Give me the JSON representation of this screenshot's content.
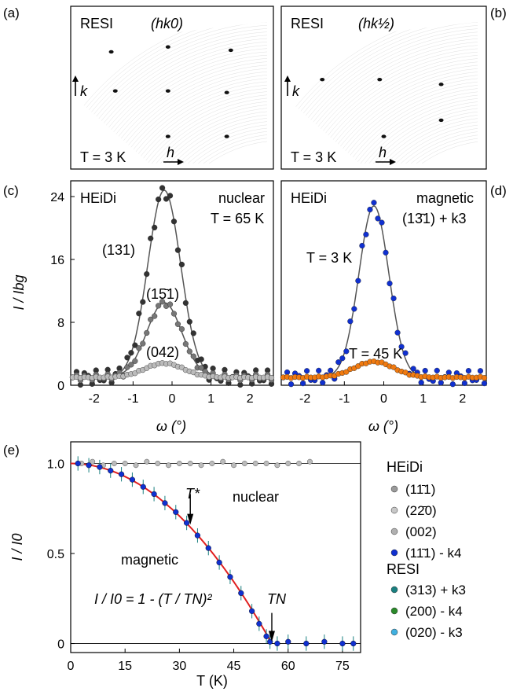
{
  "panels": {
    "a": {
      "label": "(a)",
      "instrument": "RESI",
      "plane": "(hk0)",
      "temp": "T = 3 K",
      "kaxis": "k",
      "haxis": "h"
    },
    "b": {
      "label": "(b)",
      "instrument": "RESI",
      "plane": "(hk½)",
      "temp": "T = 3 K",
      "kaxis": "k",
      "haxis": "h"
    },
    "c": {
      "label": "(c)",
      "instrument": "HEiDi",
      "mode": "nuclear",
      "temp": "T = 65 K",
      "peak1": "(131)",
      "peak2": "(15̄1)",
      "peak3": "(042)"
    },
    "d": {
      "label": "(d)",
      "instrument": "HEiDi",
      "mode": "magnetic",
      "reflection": "(13̄1) + k3",
      "temp_low": "T = 3 K",
      "temp_high": "T = 45 K"
    },
    "e": {
      "label": "(e)",
      "annot_tstar": "T*",
      "annot_nuclear": "nuclear",
      "annot_magnetic": "magnetic",
      "formula": "I / I0 = 1 - (T / TN)²",
      "annot_tn": "TN"
    }
  },
  "legend": {
    "heidi_title": "HEiDi",
    "resi_title": "RESI",
    "heidi_items": [
      {
        "label": "(11̄1)",
        "color": "#9a9a9a"
      },
      {
        "label": "(22̄0)",
        "color": "#c8c8c8"
      },
      {
        "label": "(002)",
        "color": "#b0b0b0"
      },
      {
        "label": "(11̄1) - k4",
        "color": "#1030d0"
      }
    ],
    "resi_items": [
      {
        "label": "(313) + k3",
        "color": "#1a8080"
      },
      {
        "label": "(200) - k4",
        "color": "#2a8a2a"
      },
      {
        "label": "(020) - k3",
        "color": "#40b0e0"
      }
    ]
  },
  "chart_data": [
    {
      "type": "line",
      "panel": "c",
      "xlabel": "ω (°)",
      "ylabel": "I / Ibg",
      "xlim": [
        -2.6,
        2.6
      ],
      "ylim": [
        0,
        26
      ],
      "xticks": [
        -2,
        -1,
        0,
        1,
        2
      ],
      "yticks": [
        0,
        8,
        16,
        24
      ],
      "series": [
        {
          "name": "(131)",
          "color": "#333333",
          "center": -0.2,
          "amplitude": 23.8,
          "width": 0.42,
          "baseline": 1.0
        },
        {
          "name": "(15̄1)",
          "color": "#777777",
          "center": -0.2,
          "amplitude": 9.5,
          "width": 0.45,
          "baseline": 1.0
        },
        {
          "name": "(042)",
          "color": "#bbbbbb",
          "center": -0.2,
          "amplitude": 1.8,
          "width": 0.5,
          "baseline": 1.0
        }
      ]
    },
    {
      "type": "line",
      "panel": "d",
      "xlabel": "ω (°)",
      "ylabel": "",
      "xlim": [
        -2.6,
        2.6
      ],
      "ylim": [
        0,
        26
      ],
      "xticks": [
        -2,
        -1,
        0,
        1,
        2
      ],
      "series": [
        {
          "name": "T = 3 K",
          "color": "#1030d0",
          "center": -0.25,
          "amplitude": 21.8,
          "width": 0.38,
          "baseline": 1.0
        },
        {
          "name": "T = 45 K",
          "color": "#f07a10",
          "center": -0.25,
          "amplitude": 2.0,
          "width": 0.5,
          "baseline": 1.0
        }
      ]
    },
    {
      "type": "scatter",
      "panel": "e",
      "xlabel": "T (K)",
      "ylabel": "I / I0",
      "xlim": [
        0,
        80
      ],
      "ylim": [
        -0.05,
        1.12
      ],
      "xticks": [
        0,
        15,
        30,
        45,
        60,
        75
      ],
      "yticks": [
        0,
        0.5,
        1.0
      ],
      "fit": {
        "name": "I / I0 = 1 - (T / TN)²",
        "TN": 55.5,
        "color": "#e02020"
      },
      "nuclear": {
        "x": [
          3,
          6,
          9,
          12,
          15,
          18,
          21,
          24,
          27,
          30,
          33,
          36,
          39,
          42,
          45,
          48,
          51,
          54,
          57,
          60,
          63,
          66
        ],
        "y": [
          1.0,
          1.01,
          0.99,
          1.0,
          1.0,
          0.99,
          1.01,
          1.0,
          0.99,
          1.0,
          1.0,
          0.99,
          1.0,
          1.01,
          0.99,
          1.0,
          1.0,
          1.0,
          0.99,
          1.0,
          1.0,
          1.01
        ]
      },
      "magnetic": {
        "x": [
          2,
          5,
          8,
          11,
          14,
          17,
          20,
          23,
          26,
          29,
          32,
          35,
          38,
          41,
          44,
          47,
          50,
          52,
          54,
          55,
          57,
          60,
          65,
          70,
          75,
          78
        ],
        "y": [
          1.0,
          0.99,
          0.98,
          0.96,
          0.94,
          0.91,
          0.87,
          0.83,
          0.78,
          0.73,
          0.67,
          0.6,
          0.53,
          0.45,
          0.37,
          0.28,
          0.18,
          0.11,
          0.04,
          0.01,
          0.0,
          0.01,
          0.0,
          0.01,
          0.0,
          0.0
        ]
      }
    }
  ]
}
